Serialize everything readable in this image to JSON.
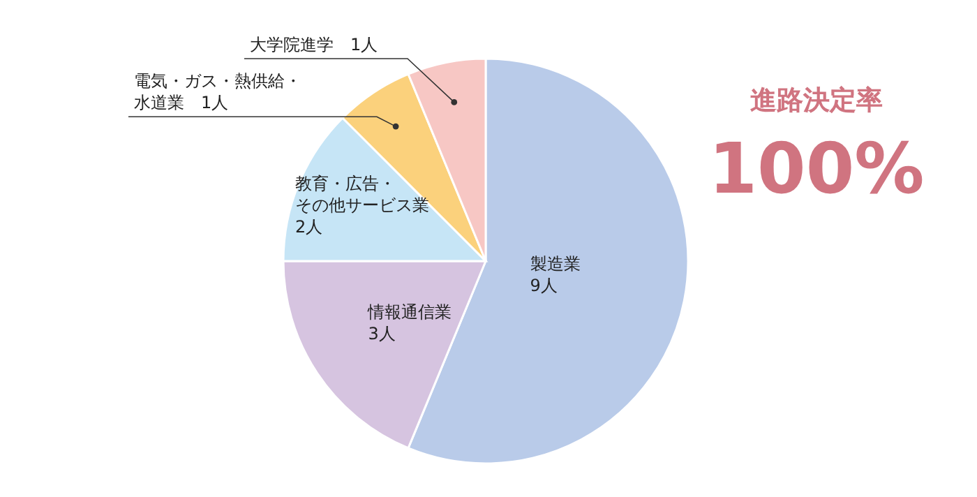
{
  "chart_data": {
    "type": "pie",
    "categories": [
      "製造業",
      "情報通信業",
      "教育・広告・その他サービス業",
      "電気・ガス・熱供給・水道業",
      "大学院進学"
    ],
    "values": [
      9,
      3,
      2,
      1,
      1
    ],
    "value_labels": [
      "9人",
      "3人",
      "2人",
      "1人",
      "1人"
    ],
    "colors": [
      "#b9cbe9",
      "#d6c4e0",
      "#c6e5f6",
      "#fbd17c",
      "#f7c7c4"
    ],
    "annotations": [
      "進路決定率",
      "100%"
    ]
  }
}
